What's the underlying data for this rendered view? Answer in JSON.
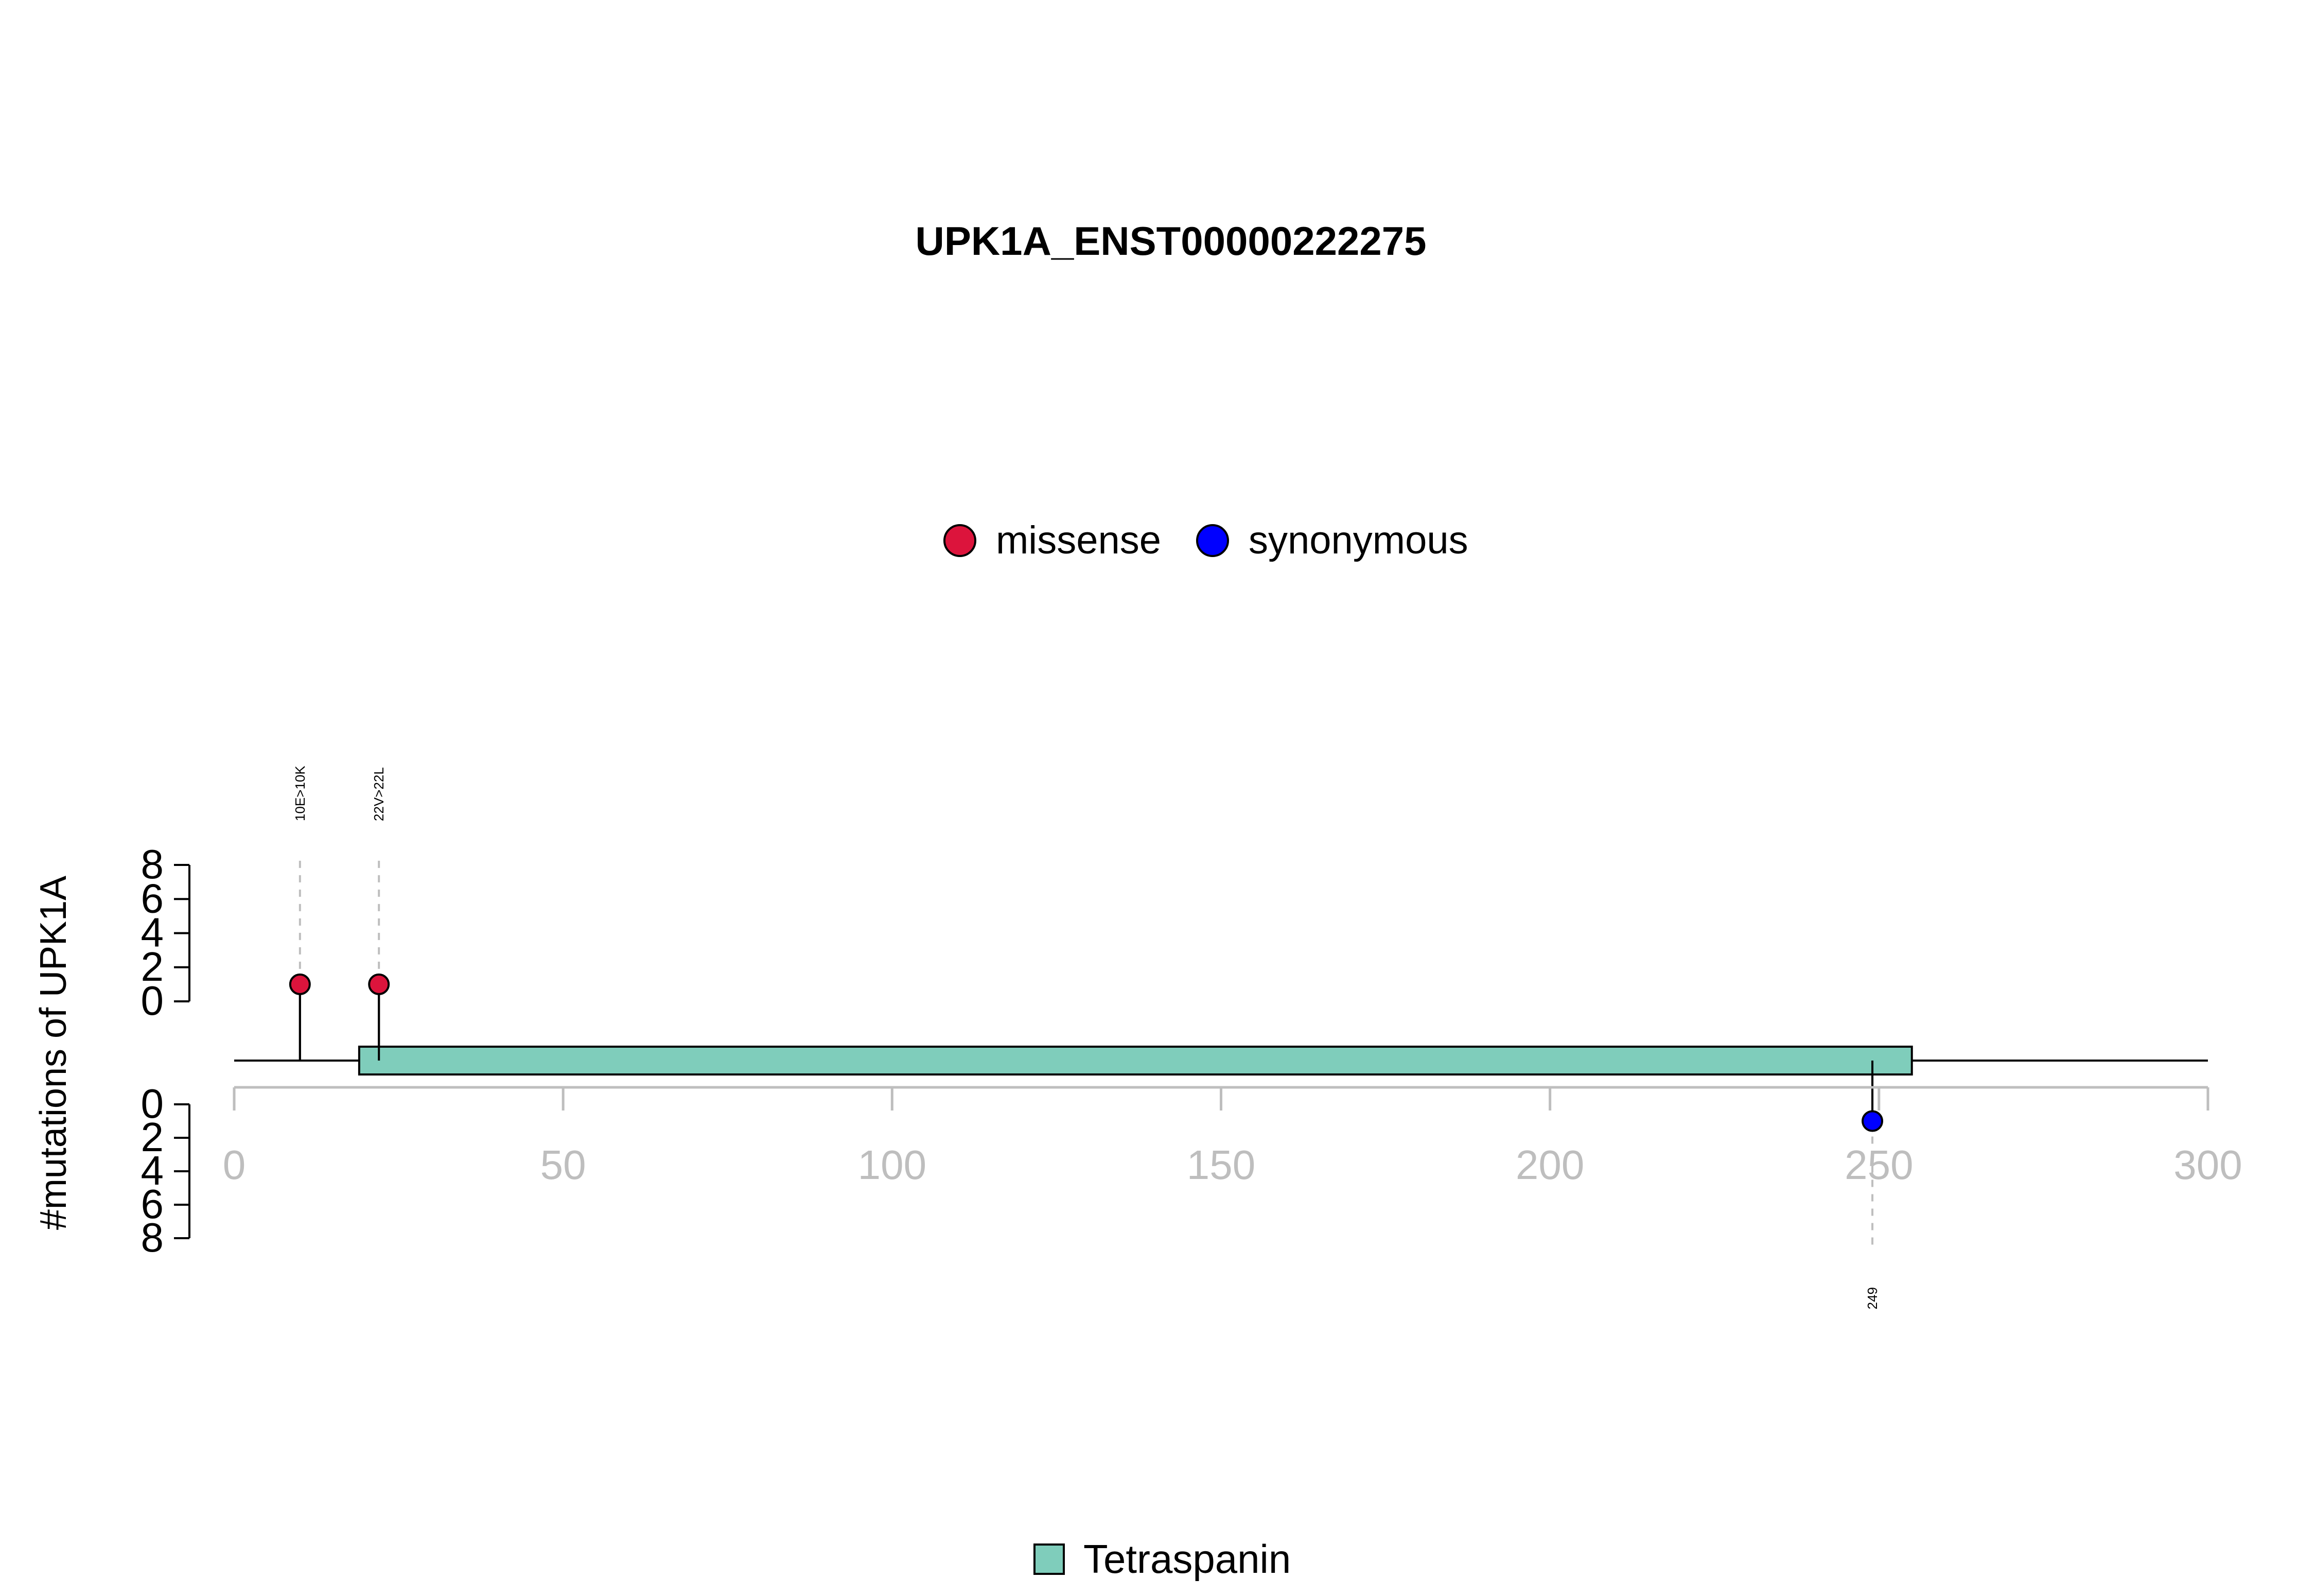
{
  "chart_data": {
    "type": "lollipop",
    "title": "UPK1A_ENST00000222275",
    "ylabel": "#mutations of UPK1A",
    "xlim": [
      0,
      300
    ],
    "x_ticks": [
      0,
      50,
      100,
      150,
      200,
      250,
      300
    ],
    "y_ticks": [
      0,
      2,
      4,
      6,
      8
    ],
    "ylim": [
      0,
      8
    ],
    "colors": {
      "missense": "#dc143c",
      "synonymous": "#0000ff",
      "domain": "#7fcdbb",
      "axis_gray": "#bebebe"
    },
    "legend": [
      {
        "label": "missense",
        "color": "#dc143c"
      },
      {
        "label": "synonymous",
        "color": "#0000ff"
      }
    ],
    "domains": [
      {
        "name": "Tetraspanin",
        "start": 19,
        "end": 255,
        "color": "#7fcdbb"
      }
    ],
    "mutations": [
      {
        "position": 10,
        "label": "10E>10K",
        "count": 1,
        "type": "missense",
        "strand": "top"
      },
      {
        "position": 22,
        "label": "22V>22L",
        "count": 1,
        "type": "missense",
        "strand": "top"
      },
      {
        "position": 249,
        "label": "249",
        "count": 1,
        "type": "synonymous",
        "strand": "bottom"
      }
    ],
    "domain_legend": [
      {
        "label": "Tetraspanin",
        "color": "#7fcdbb"
      }
    ]
  }
}
